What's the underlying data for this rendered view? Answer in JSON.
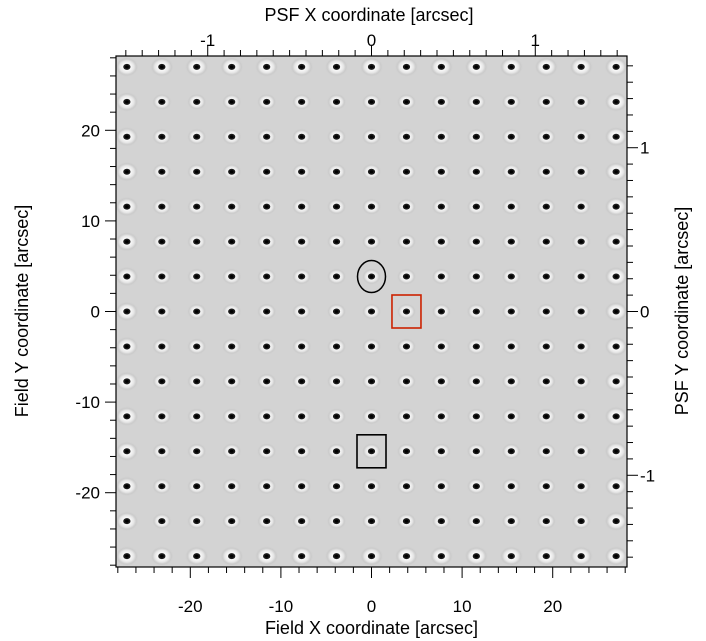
{
  "chart_data": {
    "type": "heatmap",
    "title": "",
    "xlabel": "Field X coordinate [arcsec]",
    "ylabel": "Field Y coordinate [arcsec]",
    "x2label": "PSF X coordinate [arcsec]",
    "y2label": "PSF Y coordinate [arcsec]",
    "xlim": [
      -28.2,
      28.2
    ],
    "ylim": [
      -28.2,
      28.2
    ],
    "x2lim": [
      -1.56,
      1.56
    ],
    "y2lim": [
      -1.56,
      1.56
    ],
    "x_ticks": [
      -20,
      -10,
      0,
      10,
      20
    ],
    "y_ticks": [
      -20,
      -10,
      0,
      10,
      20
    ],
    "x2_ticks": [
      -1,
      0,
      1
    ],
    "y2_ticks": [
      -1,
      0,
      1
    ],
    "x_tick_labels": [
      "-20",
      "-10",
      "0",
      "10",
      "20"
    ],
    "y_tick_labels": [
      "-20",
      "-10",
      "0",
      "10",
      "20"
    ],
    "x2_tick_labels": [
      "-1",
      "0",
      "1"
    ],
    "y2_tick_labels": [
      "-1",
      "0",
      "1"
    ],
    "grid_points_x": [
      -27,
      -23.14,
      -19.29,
      -15.43,
      -11.57,
      -7.71,
      -3.86,
      0,
      3.86,
      7.71,
      11.57,
      15.43,
      19.29,
      23.14,
      27
    ],
    "grid_points_y": [
      27,
      23.14,
      19.29,
      15.43,
      11.57,
      7.71,
      3.86,
      0,
      -3.86,
      -7.71,
      -11.57,
      -15.43,
      -19.29,
      -23.14,
      -27
    ],
    "background_color": "#d3d3d3",
    "markers": [
      {
        "shape": "circle",
        "x": 0,
        "y": 3.86,
        "color": "#000000"
      },
      {
        "shape": "square",
        "x": 3.86,
        "y": 0,
        "color": "#cc2200"
      },
      {
        "shape": "square",
        "x": 0,
        "y": -15.43,
        "color": "#000000"
      }
    ]
  }
}
